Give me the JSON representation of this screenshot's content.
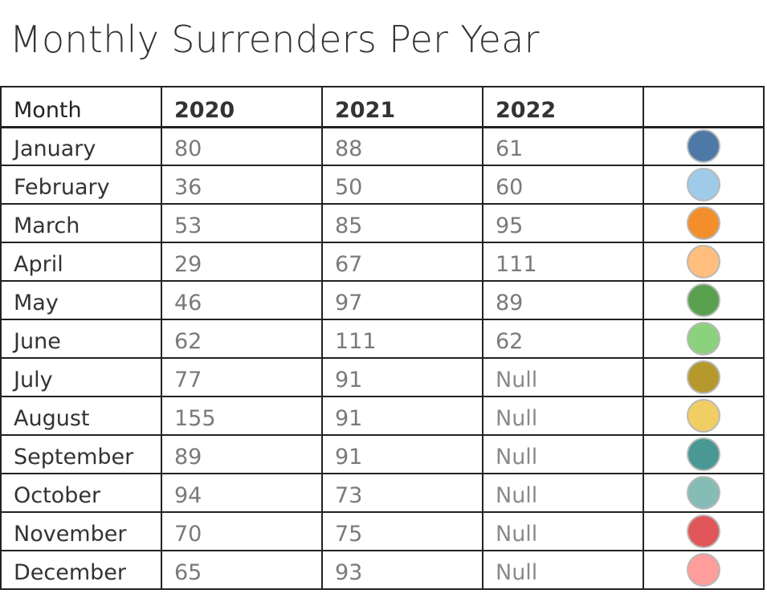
{
  "title": "Monthly Surrenders Per Year",
  "chart_data": {
    "type": "table",
    "title": "Monthly Surrenders Per Year",
    "columns": [
      "Month",
      "2020",
      "2021",
      "2022",
      ""
    ],
    "rows": [
      {
        "month": "January",
        "v2020": "80",
        "v2021": "88",
        "v2022": "61",
        "color": "#4e79a7"
      },
      {
        "month": "February",
        "v2020": "36",
        "v2021": "50",
        "v2022": "60",
        "color": "#a0cbe8"
      },
      {
        "month": "March",
        "v2020": "53",
        "v2021": "85",
        "v2022": "95",
        "color": "#f28e2b"
      },
      {
        "month": "April",
        "v2020": "29",
        "v2021": "67",
        "v2022": "111",
        "color": "#ffbe7d"
      },
      {
        "month": "May",
        "v2020": "46",
        "v2021": "97",
        "v2022": "89",
        "color": "#59a14f"
      },
      {
        "month": "June",
        "v2020": "62",
        "v2021": "111",
        "v2022": "62",
        "color": "#8cd17d"
      },
      {
        "month": "July",
        "v2020": "77",
        "v2021": "91",
        "v2022": "Null",
        "color": "#b6992d"
      },
      {
        "month": "August",
        "v2020": "155",
        "v2021": "91",
        "v2022": "Null",
        "color": "#f1ce63"
      },
      {
        "month": "September",
        "v2020": "89",
        "v2021": "91",
        "v2022": "Null",
        "color": "#499894"
      },
      {
        "month": "October",
        "v2020": "94",
        "v2021": "73",
        "v2022": "Null",
        "color": "#86bcb6"
      },
      {
        "month": "November",
        "v2020": "70",
        "v2021": "75",
        "v2022": "Null",
        "color": "#e15759"
      },
      {
        "month": "December",
        "v2020": "65",
        "v2021": "93",
        "v2022": "Null",
        "color": "#ff9d9a"
      }
    ]
  }
}
